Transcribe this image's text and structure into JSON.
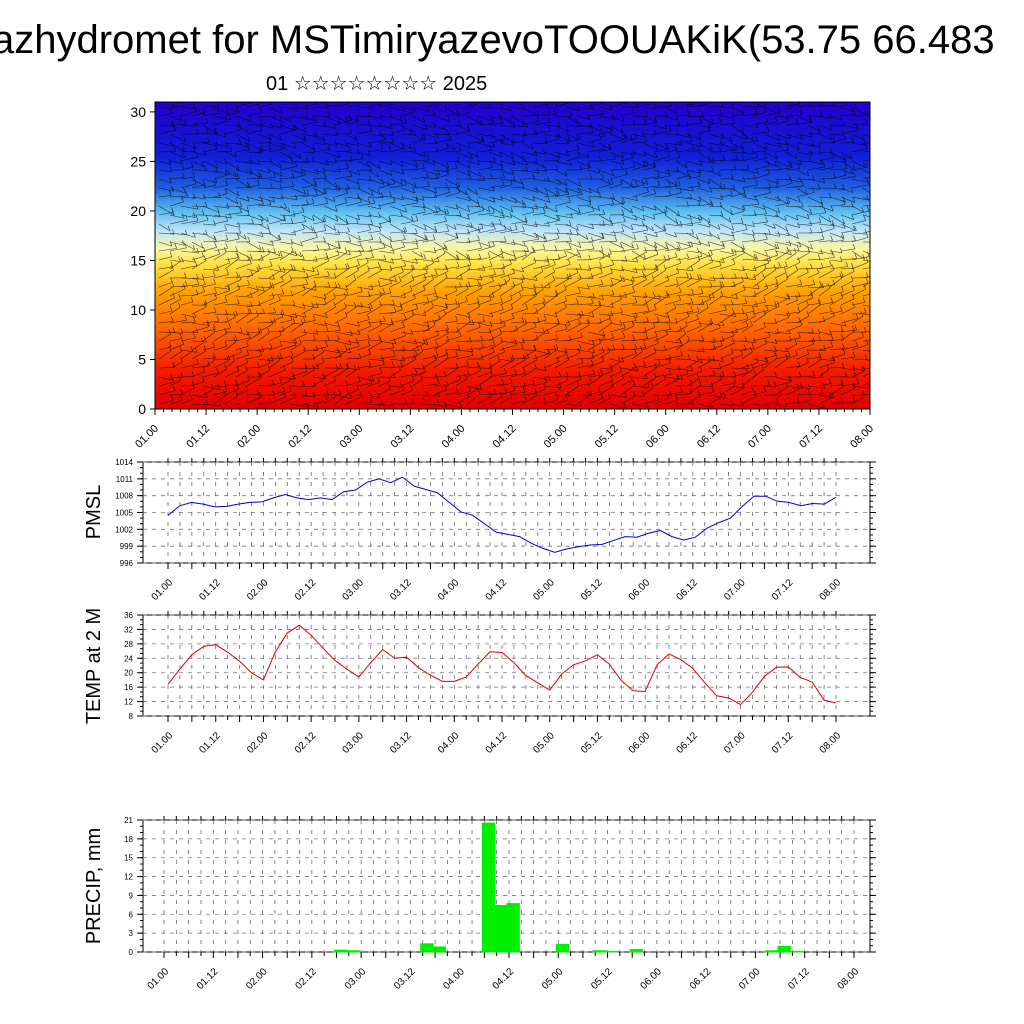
{
  "title": "azhydromet for MSTimiryazevoTOOUAKiK(53.75 66.483",
  "subtitle": "01 ☆☆☆☆☆☆☆☆ 2025",
  "time_ticks": [
    "01.00",
    "01.12",
    "02.00",
    "02.12",
    "03.00",
    "03.12",
    "04.00",
    "04.12",
    "05.00",
    "05.12",
    "06.00",
    "06.12",
    "07.00",
    "07.12",
    "08.00"
  ],
  "chart_data": [
    {
      "type": "heatmap",
      "name": "vertical-profile",
      "ylabel": "",
      "yticks": [
        "0",
        "5",
        "10",
        "15",
        "20",
        "25",
        "30"
      ],
      "ylim": [
        0,
        31
      ],
      "colormap": "red (low) to yellow to light blue to blue (high), with wind barbs overlay",
      "x": [
        "01.00",
        "01.12",
        "02.00",
        "02.12",
        "03.00",
        "03.12",
        "04.00",
        "04.12",
        "05.00",
        "05.12",
        "06.00",
        "06.12",
        "07.00",
        "07.12",
        "08.00"
      ]
    },
    {
      "type": "line",
      "name": "pmsl",
      "ylabel": "PMSL",
      "yticks": [
        "996",
        "999",
        "1002",
        "1005",
        "1008",
        "1011",
        "1014"
      ],
      "ylim": [
        996,
        1014
      ],
      "color": "#0000cc",
      "x_hours": [
        0,
        6,
        12,
        18,
        24,
        30,
        36,
        42,
        48,
        54,
        60,
        66,
        72,
        78,
        84,
        90,
        96,
        102,
        108,
        114,
        120,
        126,
        132,
        138,
        144,
        150,
        156,
        162,
        168,
        174,
        180,
        186,
        192,
        198,
        204,
        210,
        216,
        222,
        228,
        234,
        240,
        246,
        252,
        258,
        264,
        270,
        276,
        282,
        288,
        294,
        300,
        306,
        312,
        318,
        324,
        330,
        336,
        342,
        348,
        354,
        360,
        366,
        372,
        378,
        384,
        390,
        396,
        402,
        408
      ],
      "values": [
        1004.5,
        1006.2,
        1006.8,
        1006.5,
        1006.0,
        1006.1,
        1006.5,
        1006.8,
        1006.9,
        1007.6,
        1008.2,
        1007.6,
        1007.3,
        1007.6,
        1007.3,
        1008.7,
        1009.0,
        1010.4,
        1011.0,
        1010.3,
        1011.3,
        1009.7,
        1009.1,
        1008.5,
        1006.8,
        1005.1,
        1004.5,
        1003.0,
        1001.5,
        1001.1,
        1000.7,
        999.5,
        998.6,
        997.9,
        998.5,
        998.9,
        999.2,
        999.3,
        1000.0,
        1000.7,
        1000.6,
        1001.3,
        1001.8,
        1000.7,
        1000.1,
        1000.6,
        1002.2,
        1003.2,
        1004.0,
        1006.1,
        1007.9,
        1007.9,
        1007.0,
        1006.8,
        1006.2,
        1006.6,
        1006.5,
        1007.7,
        null,
        null,
        null,
        null,
        null,
        null,
        null,
        null,
        null,
        null,
        null
      ]
    },
    {
      "type": "line",
      "name": "temp-2m",
      "ylabel": "TEMP at 2 M",
      "yticks": [
        "8",
        "12",
        "16",
        "20",
        "24",
        "28",
        "32",
        "36"
      ],
      "ylim": [
        8,
        36
      ],
      "color": "#dd0000",
      "values": [
        16.8,
        21.0,
        25.0,
        27.3,
        27.8,
        25.7,
        23.2,
        20.0,
        18.0,
        25.8,
        31.0,
        33.2,
        30.4,
        26.8,
        23.4,
        21.0,
        18.8,
        22.8,
        26.4,
        24.0,
        24.3,
        21.4,
        19.3,
        17.6,
        17.6,
        18.8,
        22.4,
        25.8,
        25.6,
        22.8,
        19.2,
        17.2,
        15.2,
        19.6,
        22.2,
        23.3,
        25.0,
        22.4,
        17.8,
        15.0,
        14.8,
        22.2,
        25.2,
        23.6,
        21.2,
        17.2,
        13.6,
        13.0,
        11.2,
        14.6,
        19.0,
        21.5,
        21.6,
        18.7,
        17.4,
        12.4,
        11.6
      ]
    },
    {
      "type": "bar",
      "name": "precip",
      "ylabel": "PRECIP, mm",
      "yticks": [
        "0",
        "3",
        "6",
        "9",
        "12",
        "15",
        "18",
        "21"
      ],
      "ylim": [
        0,
        21
      ],
      "color": "#00ee00",
      "values": [
        0,
        0,
        0,
        0,
        0,
        0,
        0,
        0,
        0,
        0,
        0,
        0,
        0,
        0,
        0.3,
        0.2,
        0,
        0,
        0,
        0,
        0,
        1.3,
        0.8,
        0,
        0,
        0,
        20.5,
        7.4,
        7.7,
        0,
        0,
        0,
        1.2,
        0,
        0,
        0.2,
        0.1,
        0,
        0.4,
        0,
        0,
        0,
        0,
        0,
        0,
        0,
        0,
        0,
        0,
        0.2,
        0.9,
        0.1,
        0,
        0,
        0,
        0,
        0,
        0,
        0,
        0,
        0,
        0,
        0,
        0,
        0,
        0,
        0,
        0,
        0
      ]
    }
  ]
}
